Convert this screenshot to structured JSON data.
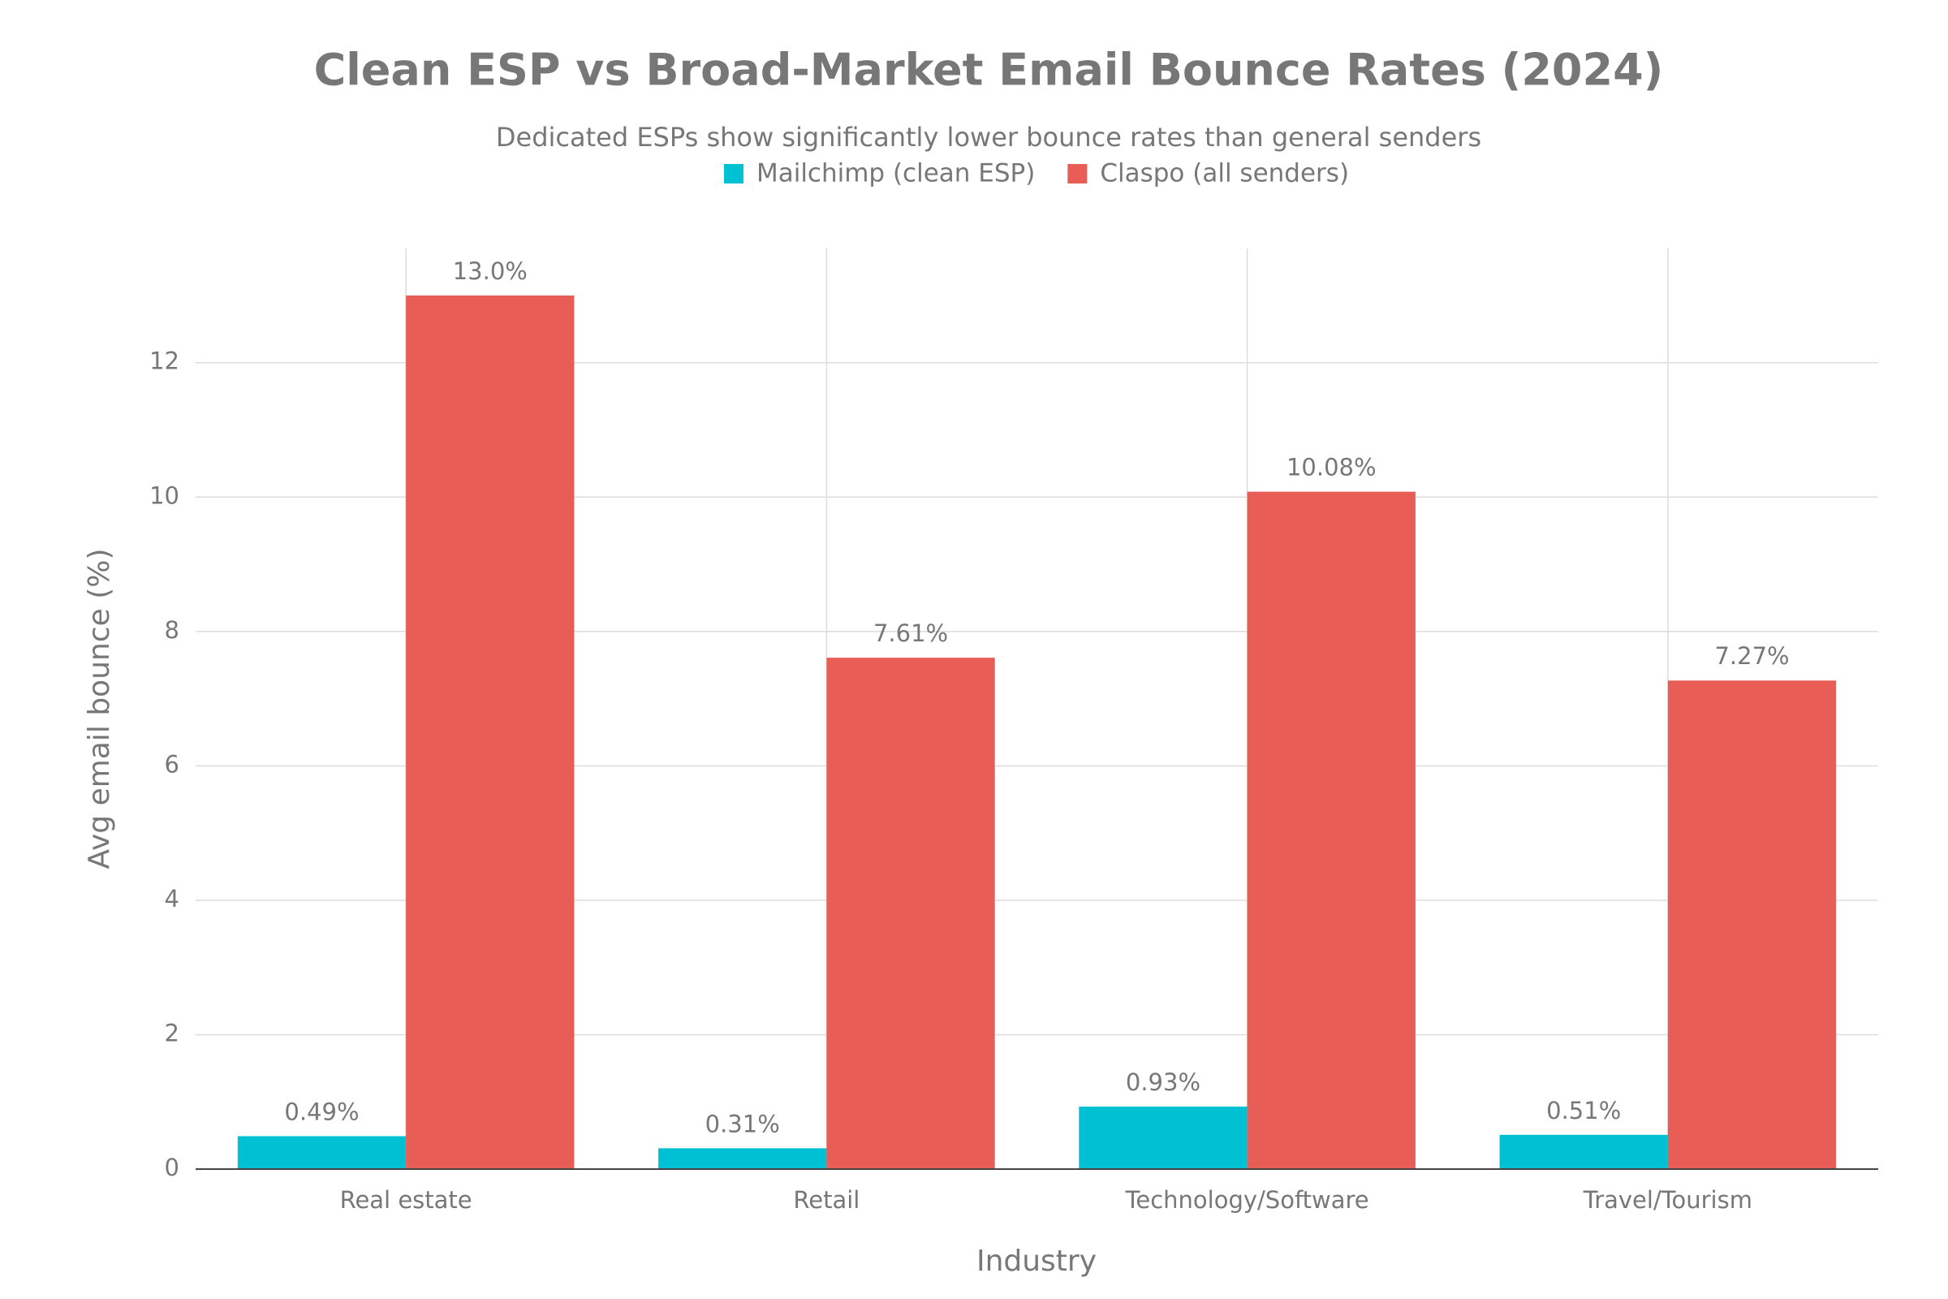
{
  "chart_data": {
    "type": "bar",
    "title": "Clean ESP vs Broad-Market Email Bounce Rates (2024)",
    "subtitle": "Dedicated ESPs show significantly lower bounce rates than general senders",
    "x_label": "Industry",
    "y_label": "Avg email bounce (%)",
    "categories": [
      "Real estate",
      "Retail",
      "Technology/Software",
      "Travel/Tourism"
    ],
    "series": [
      {
        "name": "Mailchimp (clean ESP)",
        "color": "#00c0d4",
        "values": [
          0.49,
          0.31,
          0.93,
          0.51
        ],
        "value_labels": [
          "0.49%",
          "0.31%",
          "0.93%",
          "0.51%"
        ]
      },
      {
        "name": "Claspo (all senders)",
        "color": "#e85d56",
        "values": [
          13.0,
          7.61,
          10.08,
          7.27
        ],
        "value_labels": [
          "13.0%",
          "7.61%",
          "10.08%",
          "7.27%"
        ]
      }
    ],
    "ylim": [
      0,
      13.7
    ],
    "yticks": [
      0,
      2,
      4,
      6,
      8,
      10,
      12
    ],
    "grid": true,
    "legend": "top"
  }
}
